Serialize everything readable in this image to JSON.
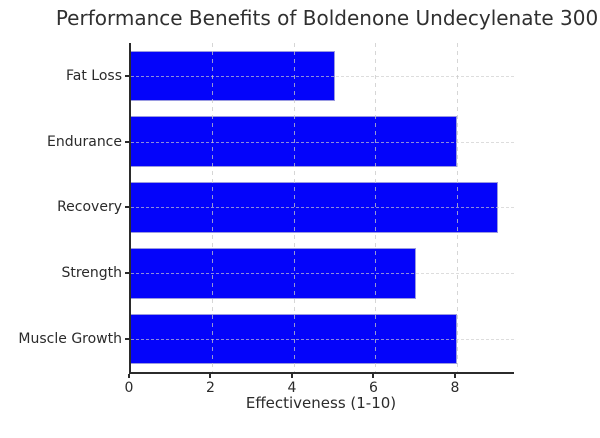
{
  "chart_data": {
    "type": "bar",
    "orientation": "horizontal",
    "title": "Performance Benefits of Boldenone Undecylenate 300",
    "xlabel": "Effectiveness (1-10)",
    "categories": [
      "Fat Loss",
      "Endurance",
      "Recovery",
      "Strength",
      "Muscle Growth"
    ],
    "values": [
      5,
      8,
      9,
      7,
      8
    ],
    "xlim": [
      0,
      9.4
    ],
    "xticks": [
      0,
      2,
      4,
      6,
      8
    ],
    "xtick_labels": [
      "0",
      "2",
      "4",
      "6",
      "8"
    ],
    "grid": true,
    "grid_style": "dashed",
    "legend": "none",
    "colors": {
      "bar": "#0404fa",
      "bar_edge": "#9a9ae0",
      "grid": "#cdcdcd",
      "spine": "#2b2b2b",
      "text": "#2b2b2b",
      "background": "#ffffff"
    }
  }
}
